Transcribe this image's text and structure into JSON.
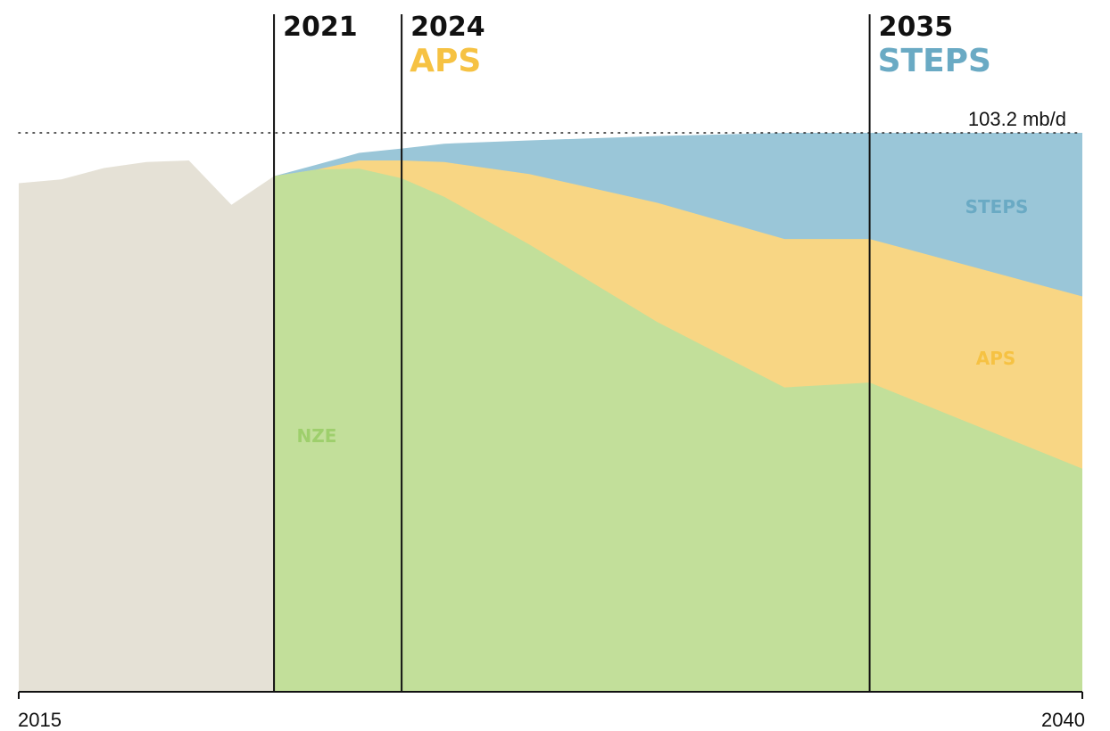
{
  "chart_data": {
    "type": "area",
    "x_range": [
      2015,
      2040
    ],
    "y_range": [
      0,
      103.2
    ],
    "x_tick_labels": [
      "2015",
      "2040"
    ],
    "reference_line": {
      "value": 103.2,
      "label": "103.2 mb/d",
      "style": "dotted"
    },
    "historical": {
      "color": "#e5e1d6",
      "x": [
        2015,
        2016,
        2017,
        2018,
        2019,
        2020,
        2021
      ],
      "y": [
        93.9,
        94.6,
        96.7,
        97.8,
        98.1,
        89.9,
        95.2
      ]
    },
    "series": [
      {
        "name": "STEPS",
        "color": "#9ac6d8",
        "label_color": "#6aaac4",
        "x": [
          2021,
          2022,
          2023,
          2024,
          2025,
          2027,
          2030,
          2033,
          2035,
          2040
        ],
        "y": [
          95.2,
          97.3,
          99.5,
          100.3,
          101.2,
          101.8,
          102.6,
          103.2,
          103.2,
          103.2
        ]
      },
      {
        "name": "APS",
        "color": "#f8d684",
        "label_color": "#f6c243",
        "x": [
          2021,
          2022,
          2023,
          2024,
          2025,
          2027,
          2030,
          2033,
          2035,
          2040
        ],
        "y": [
          95.2,
          96.4,
          98.1,
          98.1,
          97.8,
          95.6,
          90.3,
          83.6,
          83.6,
          73.0
        ],
        "y_end": [
          95.2,
          96.4,
          98.1,
          98.1,
          97.8,
          95.6,
          90.3,
          83.6,
          83.6,
          73.0
        ]
      },
      {
        "name": "NZE",
        "color": "#c2df9a",
        "label_color": "#9ecf6c",
        "x": [
          2021,
          2022,
          2023,
          2024,
          2025,
          2027,
          2030,
          2033,
          2035,
          2040
        ],
        "y": [
          95.2,
          96.4,
          96.6,
          94.8,
          91.4,
          82.6,
          68.3,
          56.2,
          57.1,
          41.2
        ]
      }
    ],
    "markers": [
      {
        "year": "2021",
        "scenario": "",
        "scenario_color": ""
      },
      {
        "year": "2024",
        "scenario": "APS",
        "scenario_color": "#f6c243"
      },
      {
        "year": "2035",
        "scenario": "STEPS",
        "scenario_color": "#6aaac4"
      }
    ],
    "area_labels": [
      "NZE",
      "APS",
      "STEPS"
    ],
    "grid": true
  }
}
